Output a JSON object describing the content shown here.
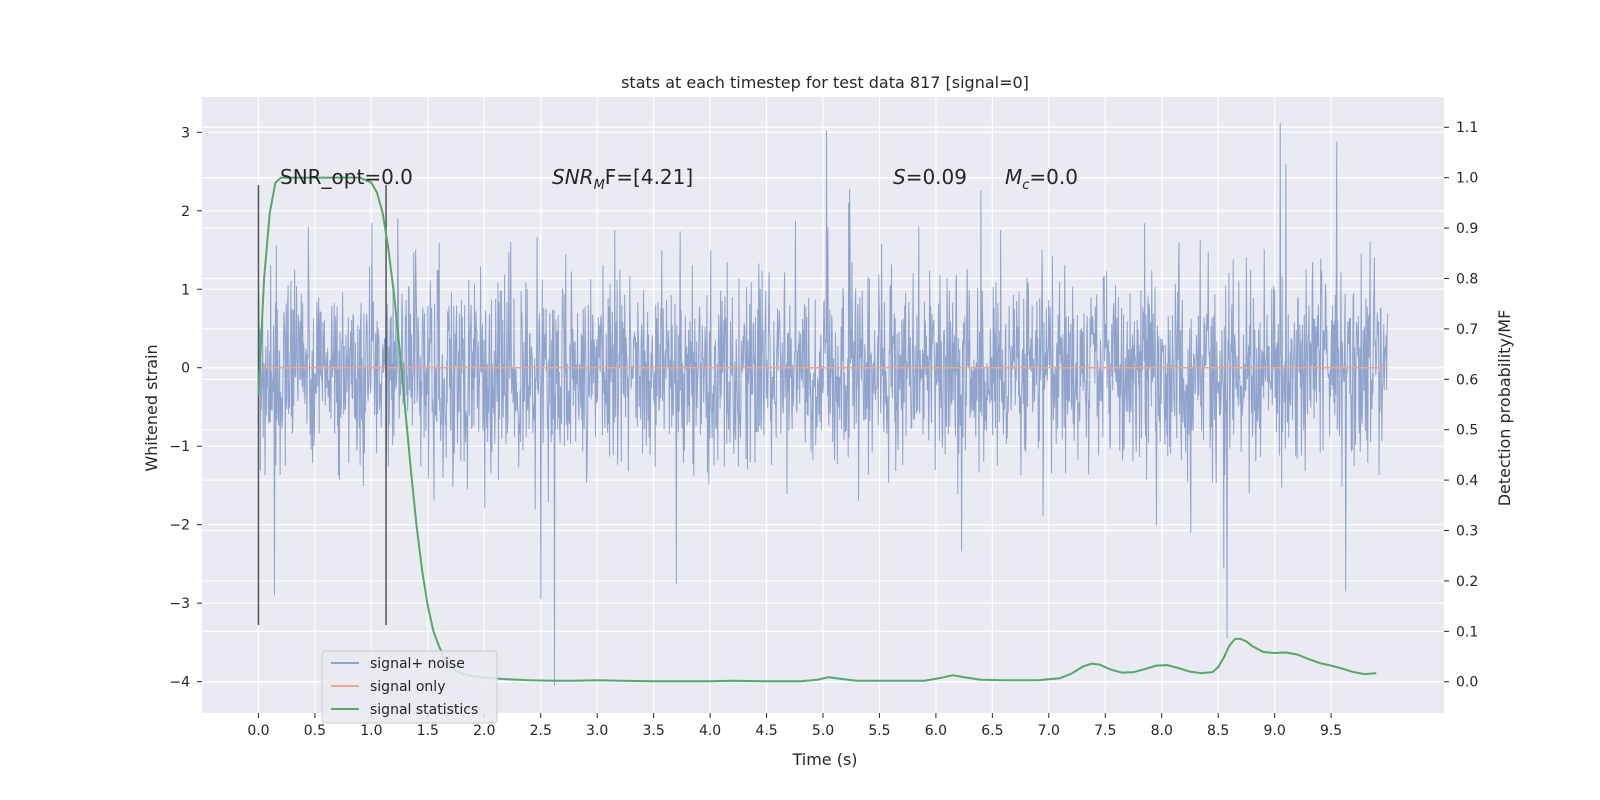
{
  "chart_data": {
    "type": "line",
    "title": "stats at each timestep for test data 817 [signal=0]",
    "xlabel": "Time (s)",
    "ylabel": "Whitened strain",
    "y2label": "Detection probability/MF",
    "xlim": [
      -0.5,
      10.5
    ],
    "ylim": [
      -4.4,
      3.45
    ],
    "y2lim": [
      -0.062,
      1.16
    ],
    "xticks": [
      "0.0",
      "0.5",
      "1.0",
      "1.5",
      "2.0",
      "2.5",
      "3.0",
      "3.5",
      "4.0",
      "4.5",
      "5.0",
      "5.5",
      "6.0",
      "6.5",
      "7.0",
      "7.5",
      "8.0",
      "8.5",
      "9.0",
      "9.5"
    ],
    "yticks": [
      "−4",
      "−3",
      "−2",
      "−1",
      "0",
      "1",
      "2",
      "3"
    ],
    "y2ticks": [
      "0.0",
      "0.1",
      "0.2",
      "0.3",
      "0.4",
      "0.5",
      "0.6",
      "0.7",
      "0.8",
      "0.9",
      "1.0",
      "1.1"
    ],
    "grid": true,
    "legend_position": "lower-left",
    "annotations": {
      "snr_opt": "SNR_opt=0.0",
      "snr_mf_base": "SNR",
      "snr_mf_sub": "M",
      "snr_mf_rest": "F=[4.21]",
      "s_var": "S",
      "s_val": "=0.09",
      "mc_var": "M",
      "mc_sub": "c",
      "mc_val": "=0.0"
    },
    "vlines": [
      0.0,
      1.13
    ],
    "noise": {
      "name": "signal+ noise",
      "color": "#8fa3cd",
      "x_range": [
        0.0,
        10.0
      ],
      "sigma": 0.65,
      "spikes": [
        {
          "x": 0.14,
          "y": -2.9
        },
        {
          "x": 2.5,
          "y": -2.95
        },
        {
          "x": 2.62,
          "y": -4.05
        },
        {
          "x": 3.7,
          "y": -2.75
        },
        {
          "x": 5.03,
          "y": 3.02
        },
        {
          "x": 8.55,
          "y": -2.55
        },
        {
          "x": 8.58,
          "y": -3.45
        },
        {
          "x": 9.05,
          "y": 3.12
        },
        {
          "x": 9.1,
          "y": 2.6
        },
        {
          "x": 9.55,
          "y": 2.88
        },
        {
          "x": 9.63,
          "y": -2.85
        }
      ]
    },
    "series": [
      {
        "name": "signal only",
        "color": "#e8a98c",
        "x": [
          0.0,
          10.0
        ],
        "y": [
          0.0,
          0.0
        ]
      },
      {
        "name": "signal statistics",
        "color": "#55a868",
        "axis": "right",
        "x": [
          0.0,
          0.05,
          0.1,
          0.15,
          0.2,
          0.3,
          0.4,
          0.5,
          0.6,
          0.7,
          0.8,
          0.9,
          1.0,
          1.05,
          1.1,
          1.15,
          1.2,
          1.25,
          1.3,
          1.35,
          1.4,
          1.45,
          1.5,
          1.55,
          1.6,
          1.65,
          1.7,
          1.75,
          1.8,
          1.9,
          2.0,
          2.2,
          2.4,
          2.6,
          2.8,
          3.0,
          3.2,
          3.5,
          4.0,
          4.2,
          4.5,
          4.8,
          4.95,
          5.05,
          5.15,
          5.3,
          5.6,
          5.9,
          6.05,
          6.15,
          6.25,
          6.4,
          6.6,
          6.9,
          7.1,
          7.2,
          7.3,
          7.38,
          7.45,
          7.55,
          7.65,
          7.75,
          7.85,
          7.95,
          8.05,
          8.15,
          8.25,
          8.35,
          8.45,
          8.5,
          8.55,
          8.6,
          8.65,
          8.7,
          8.75,
          8.8,
          8.9,
          9.0,
          9.1,
          9.2,
          9.3,
          9.4,
          9.5,
          9.6,
          9.7,
          9.8,
          9.9
        ],
        "y": [
          0.57,
          0.8,
          0.93,
          0.99,
          1.0,
          1.0,
          1.0,
          1.0,
          1.0,
          1.0,
          1.0,
          1.0,
          0.99,
          0.97,
          0.93,
          0.86,
          0.77,
          0.66,
          0.54,
          0.42,
          0.31,
          0.22,
          0.15,
          0.1,
          0.07,
          0.045,
          0.03,
          0.022,
          0.016,
          0.011,
          0.008,
          0.005,
          0.003,
          0.002,
          0.002,
          0.003,
          0.002,
          0.001,
          0.001,
          0.002,
          0.001,
          0.001,
          0.004,
          0.009,
          0.006,
          0.002,
          0.002,
          0.002,
          0.008,
          0.013,
          0.009,
          0.004,
          0.003,
          0.003,
          0.007,
          0.016,
          0.03,
          0.036,
          0.034,
          0.024,
          0.018,
          0.019,
          0.025,
          0.032,
          0.033,
          0.027,
          0.02,
          0.017,
          0.019,
          0.029,
          0.048,
          0.072,
          0.085,
          0.085,
          0.08,
          0.071,
          0.059,
          0.057,
          0.058,
          0.054,
          0.045,
          0.037,
          0.032,
          0.026,
          0.019,
          0.015,
          0.017
        ]
      }
    ]
  }
}
